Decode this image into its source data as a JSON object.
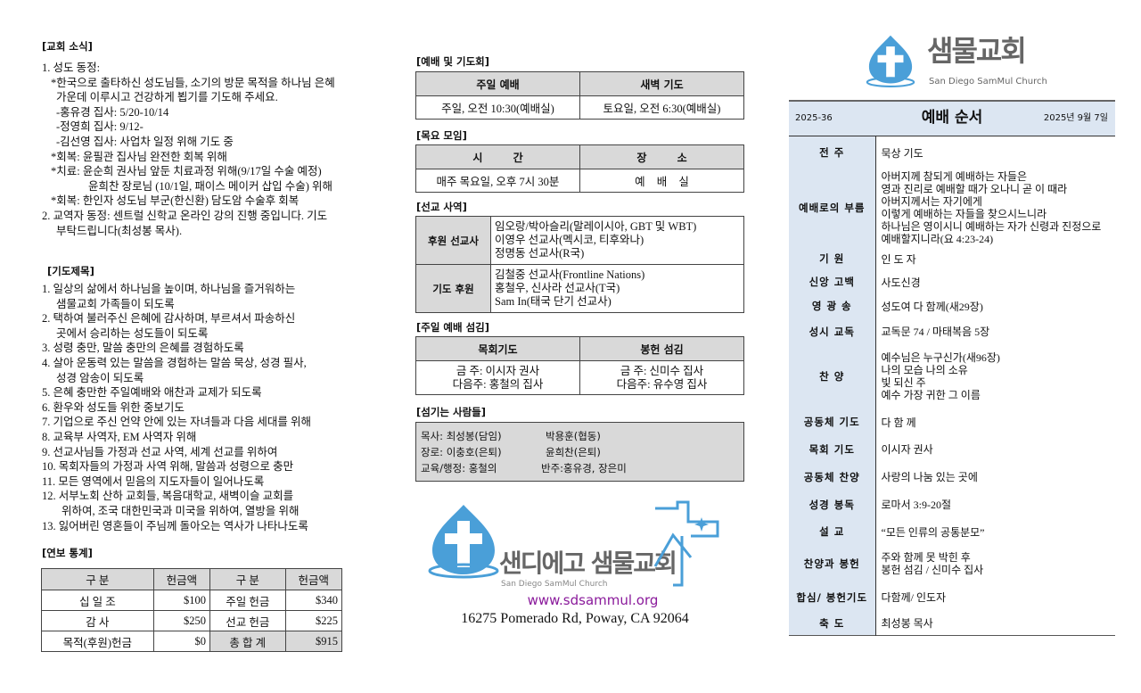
{
  "news": {
    "title": "[교회 소식]",
    "lines": [
      "1. 성도 동정:",
      "*한국으로 출타하신 성도님들, 소기의 방문 목적을 하나님 은혜",
      "가운데 이루시고 건강하게 뵙기를 기도해 주세요.",
      "-홍유경 집사: 5/20-10/14",
      "-정영희 집사: 9/12-",
      "-김선영 집사: 사업차 일정 위해 기도 중",
      "*회복: 윤필관 집사님 완전한 회복 위해",
      "*치료: 윤순희 권사님 앞둔 치료과정 위해(9/17일 수술 예정)",
      "윤희찬 장로님 (10/1일, 패이스 메이커 삽입 수술) 위해",
      "*회복: 한인자 성도님 부군(한신환) 담도암 수술후 회복",
      "2. 교역자 동정: 센트럴 신학교 온라인 강의 진행 중입니다. 기도",
      "부탁드립니다(최성봉 목사)."
    ]
  },
  "prayer": {
    "title": "[기도제목]",
    "lines": [
      "1. 일상의 삶에서 하나님을 높이며, 하나님을 즐거워하는",
      "샘물교회 가족들이 되도록",
      "2. 택하여 불러주신 은혜에 감사하며, 부르셔서 파송하신",
      "곳에서 승리하는 성도들이 되도록",
      "3. 성령 충만, 말씀 충만의 은혜를 경험하도록",
      "4. 살아 운동력 있는 말씀을 경험하는 말씀 묵상, 성경 필사,",
      "성경 암송이 되도록",
      "5. 은혜 충만한 주일예배와 애찬과 교제가 되도록",
      "6. 환우와 성도들 위한 중보기도",
      "7. 기업으로 주신 언약 안에 있는 자녀들과 다음 세대를 위해",
      "8. 교육부 사역자, EM 사역자 위해",
      "9. 선교사님들 가정과 선교 사역, 세계 선교를 위하여",
      "10. 목회자들의 가정과 사역 위해, 말씀과 성령으로 충만",
      "11. 모든 영역에서 믿음의 지도자들이 일어나도록",
      "12. 서부노회 산하 교회들, 복음대학교, 새벽이슬 교회를",
      "위하여, 조국 대한민국과 미국을 위하여, 열방을 위해",
      "13. 잃어버린 영혼들이 주님께 돌아오는 역사가 나타나도록"
    ]
  },
  "finance": {
    "title": "[연보 통계]",
    "headers": [
      "구 분",
      "헌금액",
      "구 분",
      "헌금액"
    ],
    "rows": [
      [
        "십 일 조",
        "$100",
        "주일 헌금",
        "$340"
      ],
      [
        "감 사",
        "$250",
        "선교 헌금",
        "$225"
      ],
      [
        "목적(후원)헌금",
        "$0",
        "총 합 계",
        "$915"
      ]
    ]
  },
  "worship": {
    "title": "[예배 및 기도회]",
    "headers": [
      "주일 예배",
      "새벽 기도"
    ],
    "values": [
      "주일, 오전 10:30(예배실)",
      "토요일, 오전 6:30(예배실)"
    ]
  },
  "thursday": {
    "title": "[목요 모임]",
    "headers": [
      "시 간",
      "장 소"
    ],
    "values": [
      "매주 목요일, 오후 7시 30분",
      "예 배 실"
    ]
  },
  "mission": {
    "title": "[선교 사역]",
    "rows": [
      {
        "label": "후원 선교사",
        "items": [
          "임오랑/박아슬리(말레이시아, GBT 및 WBT)",
          "이영우 선교사(멕시코, 티후와나)",
          "정명동 선교사(R국)"
        ]
      },
      {
        "label": "기도 후원",
        "items": [
          "김철중 선교사(Frontline Nations)",
          "홍철우, 신사라 선교사(T국)",
          "Sam In(태국 단기 선교사)"
        ]
      }
    ]
  },
  "service": {
    "title": "[주일 예배 섬김]",
    "headers": [
      "목회기도",
      "봉헌 섬김"
    ],
    "cols": [
      [
        "금 주: 이시자 권사",
        "다음주: 홍철의 집사"
      ],
      [
        "금 주: 신미수 집사",
        "다음주: 유수영 집사"
      ]
    ]
  },
  "staff": {
    "title": "[섬기는 사람들]",
    "rows": [
      [
        "목사: 최성봉(담임)",
        "박용훈(협동)"
      ],
      [
        "장로: 이충호(은퇴)",
        "윤희찬(은퇴)"
      ],
      [
        "교육/행정: 홍철의",
        "반주:홍유경, 장은미"
      ]
    ]
  },
  "footer": {
    "logo_ko": "샌디에고 샘물교회",
    "logo_en": "San Diego SamMul Church",
    "url": "www.sdsammul.org",
    "address": "16275 Pomerado Rd, Poway, CA 92064"
  },
  "brand": {
    "logo_ko": "샘물교회",
    "logo_en": "San Diego SamMul Church",
    "color": "#4a9fd8",
    "header_bg": "#dce6f2"
  },
  "order": {
    "issue": "2025-36",
    "title": "예배 순서",
    "date": "2025년 9월 7일",
    "rows": [
      {
        "k": "전 주",
        "v": [
          "묵상 기도"
        ]
      },
      {
        "k": "예배로의 부름",
        "v": [
          "아버지께 참되게 예배하는 자들은",
          "영과 진리로 예배할 때가 오나니 곧 이 때라",
          "아버지께서는 자기에게",
          "이렇게 예배하는 자들을 찾으시느니라",
          "하나님은 영이시니 예배하는 자가 신령과 진정으로",
          "예배할지니라(요 4:23-24)"
        ]
      },
      {
        "k": "기 원",
        "v": [
          "인 도 자"
        ]
      },
      {
        "k": "신앙 고백",
        "v": [
          "사도신경"
        ]
      },
      {
        "k": "영 광 송",
        "v": [
          "성도여 다 함께(새29장)"
        ]
      },
      {
        "k": "성시 교독",
        "v": [
          "교독문 74 / 마태복음 5장"
        ]
      },
      {
        "k": "찬 양",
        "v": [
          "예수님은 누구신가(새96장)",
          "나의 모습 나의 소유",
          "빛 되신 주",
          "예수 가장 귀한 그 이름"
        ]
      },
      {
        "k": "공동체 기도",
        "v": [
          "다 함 께"
        ]
      },
      {
        "k": "목회 기도",
        "v": [
          "이시자 권사"
        ]
      },
      {
        "k": "공동체 찬양",
        "v": [
          "사랑의 나눔 있는 곳에"
        ]
      },
      {
        "k": "성경 봉독",
        "v": [
          "로마서 3:9-20절"
        ]
      },
      {
        "k": "설 교",
        "v": [
          "“모든 인류의 공통분모”"
        ]
      },
      {
        "k": "찬양과 봉헌",
        "v": [
          "주와 함께 못 박힌 후",
          "봉헌 섬김 / 신미수 집사"
        ]
      },
      {
        "k": "합심/ 봉헌기도",
        "v": [
          "다함께/ 인도자"
        ]
      },
      {
        "k": "축 도",
        "v": [
          "최성봉 목사"
        ]
      }
    ]
  }
}
